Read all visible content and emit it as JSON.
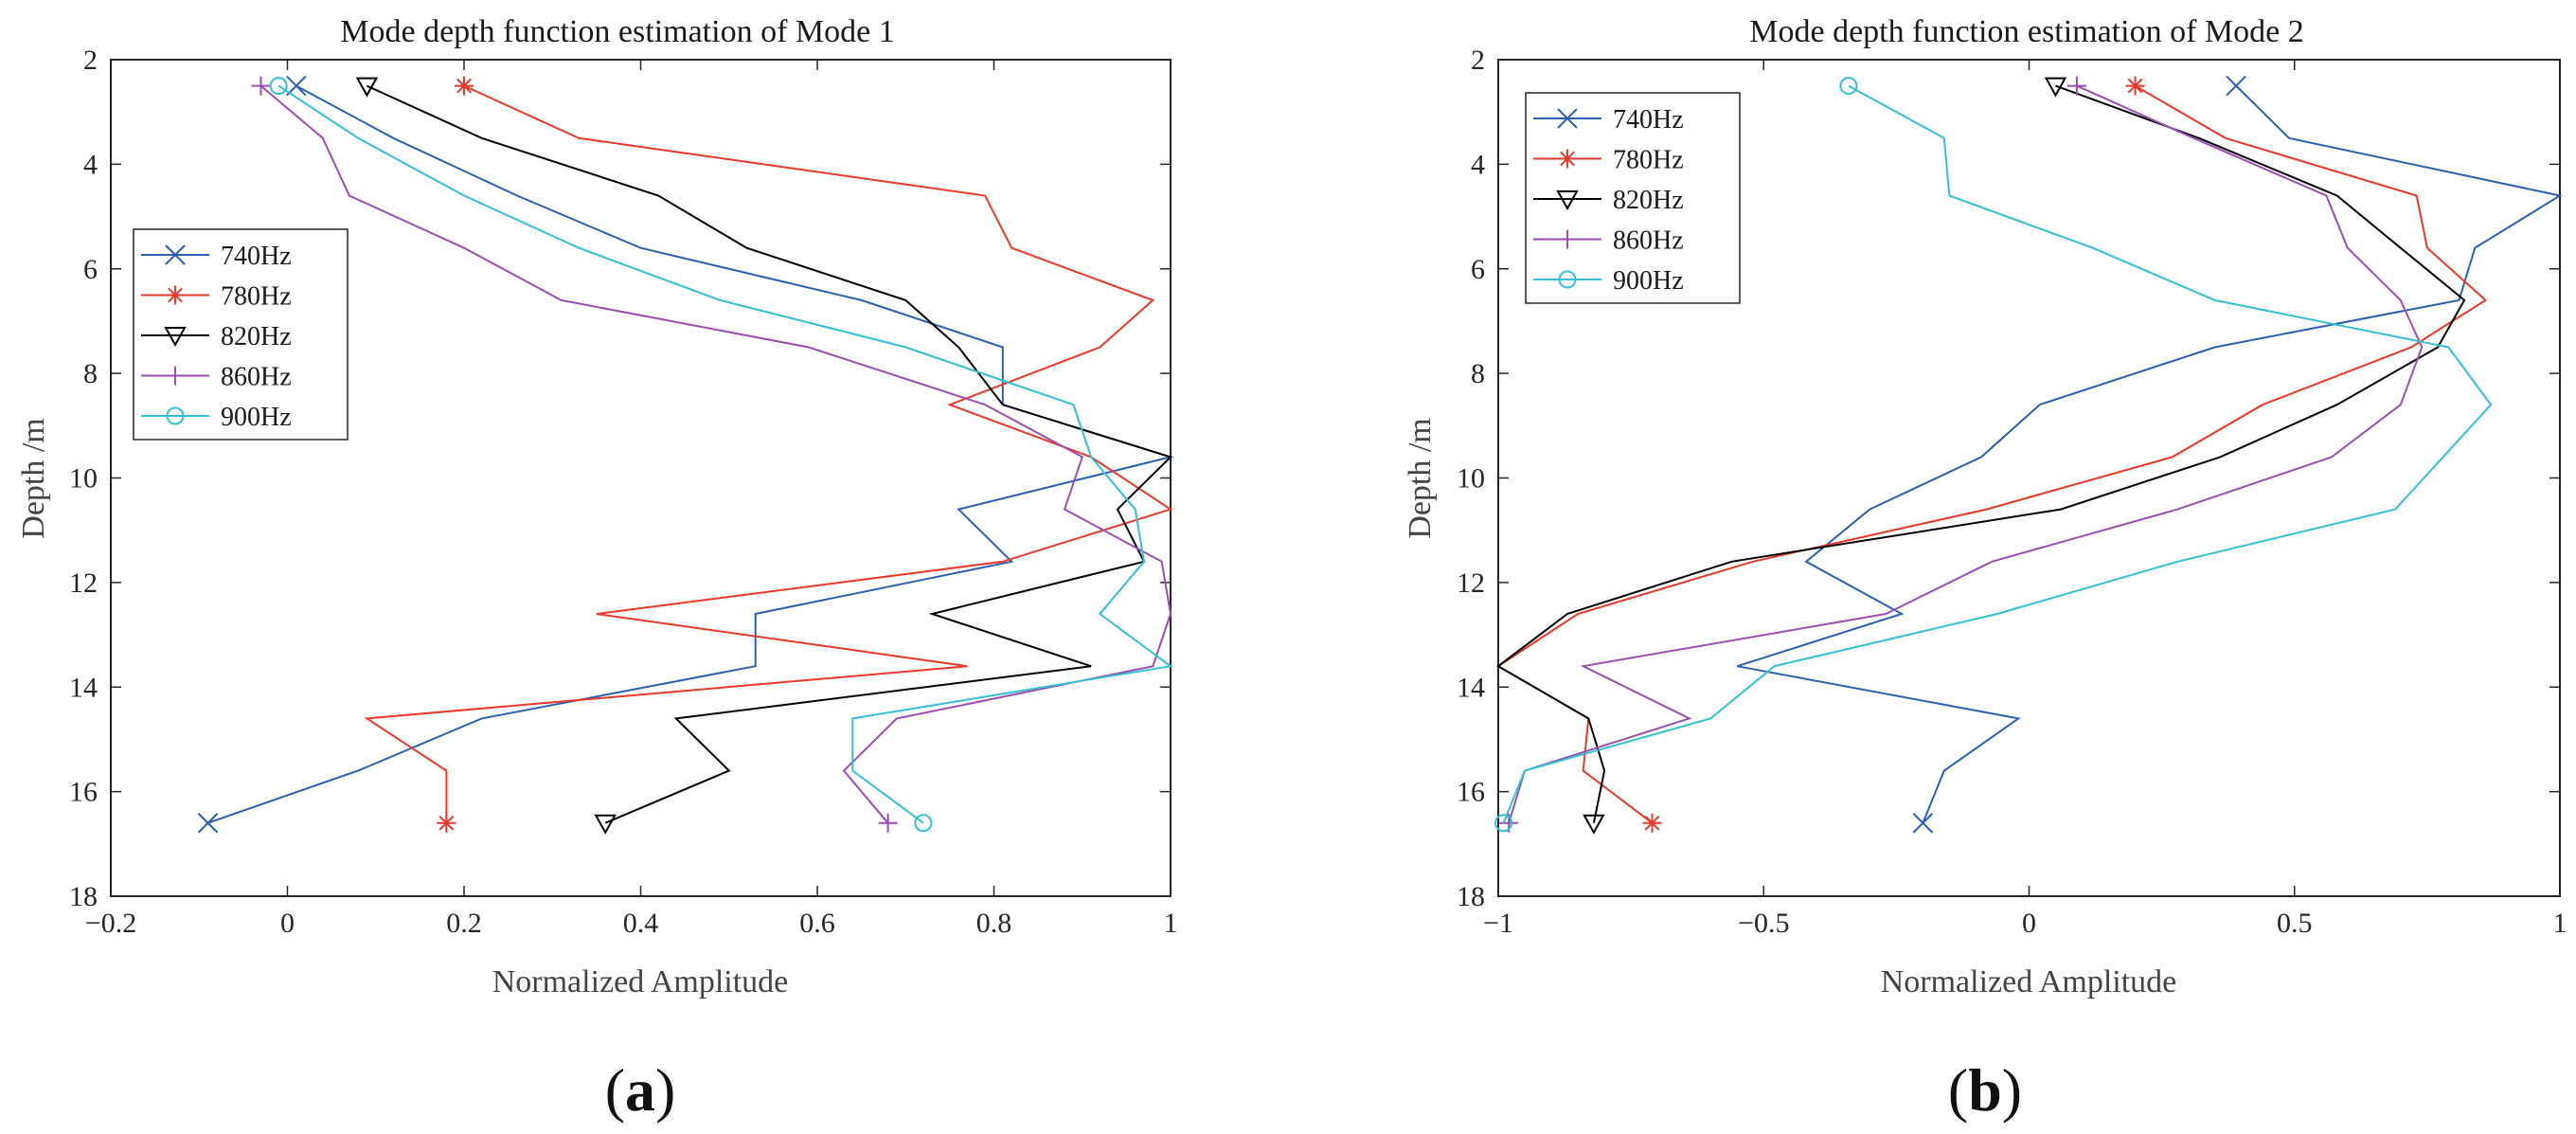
{
  "chart_data": [
    {
      "type": "line",
      "panel_label": "(a)",
      "panel_letter": "a",
      "title": "Mode depth function estimation of Mode 1",
      "xlabel": "Normalized Amplitude",
      "ylabel": "Depth /m",
      "xlim": [
        -0.2,
        1
      ],
      "ylim": [
        2,
        18
      ],
      "y_reversed": true,
      "xticks": [
        -0.2,
        0,
        0.2,
        0.4,
        0.6,
        0.8,
        1
      ],
      "xtick_labels": [
        "−0.2",
        "0",
        "0.2",
        "0.4",
        "0.6",
        "0.8",
        "1"
      ],
      "yticks": [
        2,
        4,
        6,
        8,
        10,
        12,
        14,
        16,
        18
      ],
      "ytick_labels": [
        "2",
        "4",
        "6",
        "8",
        "10",
        "12",
        "14",
        "16",
        "18"
      ],
      "grid": false,
      "legend_position": "middle-left",
      "series": [
        {
          "name": "740Hz",
          "color": "#2b5fb0",
          "marker": "x",
          "y": [
            2.5,
            3.5,
            4.6,
            5.6,
            6.6,
            7.5,
            8.6,
            9.6,
            10.6,
            11.6,
            12.6,
            13.6,
            14.6,
            15.6,
            16.6
          ],
          "x": [
            0.01,
            0.12,
            0.26,
            0.4,
            0.65,
            0.81,
            0.81,
            1.0,
            0.76,
            0.82,
            0.53,
            0.53,
            0.22,
            0.08,
            -0.09
          ]
        },
        {
          "name": "780Hz",
          "color": "#e8382a",
          "marker": "asterisk",
          "y": [
            2.5,
            3.5,
            4.6,
            5.6,
            6.6,
            7.5,
            8.6,
            9.6,
            10.6,
            11.6,
            12.6,
            13.6,
            14.6,
            15.6,
            16.6
          ],
          "x": [
            0.2,
            0.33,
            0.79,
            0.82,
            0.98,
            0.92,
            0.75,
            0.91,
            1.0,
            0.81,
            0.35,
            0.77,
            0.09,
            0.18,
            0.18
          ]
        },
        {
          "name": "820Hz",
          "color": "#000000",
          "marker": "triangle-down",
          "y": [
            2.5,
            3.5,
            4.6,
            5.6,
            6.6,
            7.5,
            8.6,
            9.6,
            10.6,
            11.6,
            12.6,
            13.6,
            14.6,
            15.6,
            16.6
          ],
          "x": [
            0.09,
            0.22,
            0.42,
            0.52,
            0.7,
            0.76,
            0.81,
            1.0,
            0.94,
            0.97,
            0.73,
            0.91,
            0.44,
            0.5,
            0.36
          ]
        },
        {
          "name": "860Hz",
          "color": "#9a4fb0",
          "marker": "plus",
          "y": [
            2.5,
            3.5,
            4.6,
            5.6,
            6.6,
            7.5,
            8.6,
            9.6,
            10.6,
            11.6,
            12.6,
            13.6,
            14.6,
            15.6,
            16.6
          ],
          "x": [
            -0.03,
            0.04,
            0.07,
            0.2,
            0.31,
            0.59,
            0.79,
            0.9,
            0.88,
            0.99,
            1.0,
            0.98,
            0.69,
            0.63,
            0.68
          ]
        },
        {
          "name": "900Hz",
          "color": "#33c0d0",
          "marker": "circle",
          "y": [
            2.5,
            3.5,
            4.6,
            5.6,
            6.6,
            7.5,
            8.6,
            9.6,
            10.6,
            11.6,
            12.6,
            13.6,
            14.6,
            15.6,
            16.6
          ],
          "x": [
            -0.01,
            0.08,
            0.2,
            0.33,
            0.49,
            0.7,
            0.89,
            0.91,
            0.96,
            0.97,
            0.92,
            1.0,
            0.64,
            0.64,
            0.72
          ]
        }
      ]
    },
    {
      "type": "line",
      "panel_label": "(b)",
      "panel_letter": "b",
      "title": "Mode depth function estimation of Mode 2",
      "xlabel": "Normalized Amplitude",
      "ylabel": "Depth /m",
      "xlim": [
        -1,
        1
      ],
      "ylim": [
        2,
        18
      ],
      "y_reversed": true,
      "xticks": [
        -1,
        -0.5,
        0,
        0.5,
        1
      ],
      "xtick_labels": [
        "−1",
        "−0.5",
        "0",
        "0.5",
        "1"
      ],
      "yticks": [
        2,
        4,
        6,
        8,
        10,
        12,
        14,
        16,
        18
      ],
      "ytick_labels": [
        "2",
        "4",
        "6",
        "8",
        "10",
        "12",
        "14",
        "16",
        "18"
      ],
      "grid": false,
      "legend_position": "top-left",
      "series": [
        {
          "name": "740Hz",
          "color": "#2b5fb0",
          "marker": "x",
          "y": [
            2.5,
            3.5,
            4.6,
            5.6,
            6.6,
            7.5,
            8.6,
            9.6,
            10.6,
            11.6,
            12.6,
            13.6,
            14.6,
            15.6,
            16.6
          ],
          "x": [
            0.39,
            0.49,
            1.0,
            0.84,
            0.81,
            0.35,
            0.02,
            -0.09,
            -0.3,
            -0.42,
            -0.24,
            -0.55,
            -0.02,
            -0.16,
            -0.2
          ]
        },
        {
          "name": "780Hz",
          "color": "#e8382a",
          "marker": "asterisk",
          "y": [
            2.5,
            3.5,
            4.6,
            5.6,
            6.6,
            7.5,
            8.6,
            9.6,
            10.6,
            11.6,
            12.6,
            13.6,
            14.6,
            15.6,
            16.6
          ],
          "x": [
            0.2,
            0.37,
            0.73,
            0.75,
            0.86,
            0.72,
            0.44,
            0.27,
            -0.08,
            -0.52,
            -0.85,
            -1.0,
            -0.83,
            -0.84,
            -0.71
          ]
        },
        {
          "name": "820Hz",
          "color": "#000000",
          "marker": "triangle-down",
          "y": [
            2.5,
            3.5,
            4.6,
            5.6,
            6.6,
            7.5,
            8.6,
            9.6,
            10.6,
            11.6,
            12.6,
            13.6,
            14.6,
            15.6,
            16.6
          ],
          "x": [
            0.05,
            0.32,
            0.58,
            0.7,
            0.82,
            0.77,
            0.58,
            0.36,
            0.06,
            -0.56,
            -0.87,
            -1.0,
            -0.83,
            -0.8,
            -0.82
          ]
        },
        {
          "name": "860Hz",
          "color": "#9a4fb0",
          "marker": "plus",
          "y": [
            2.5,
            3.5,
            4.6,
            5.6,
            6.6,
            7.5,
            8.6,
            9.6,
            10.6,
            11.6,
            12.6,
            13.6,
            14.6,
            15.6,
            16.6
          ],
          "x": [
            0.09,
            0.31,
            0.56,
            0.6,
            0.7,
            0.74,
            0.7,
            0.57,
            0.28,
            -0.07,
            -0.27,
            -0.84,
            -0.64,
            -0.95,
            -0.98
          ]
        },
        {
          "name": "900Hz",
          "color": "#33c0d0",
          "marker": "circle",
          "y": [
            2.5,
            3.5,
            4.6,
            5.6,
            6.6,
            7.5,
            8.6,
            9.6,
            10.6,
            11.6,
            12.6,
            13.6,
            14.6,
            15.6,
            16.6
          ],
          "x": [
            -0.34,
            -0.16,
            -0.15,
            0.12,
            0.35,
            0.79,
            0.87,
            0.78,
            0.69,
            0.28,
            -0.06,
            -0.48,
            -0.6,
            -0.95,
            -0.99
          ]
        }
      ]
    }
  ]
}
